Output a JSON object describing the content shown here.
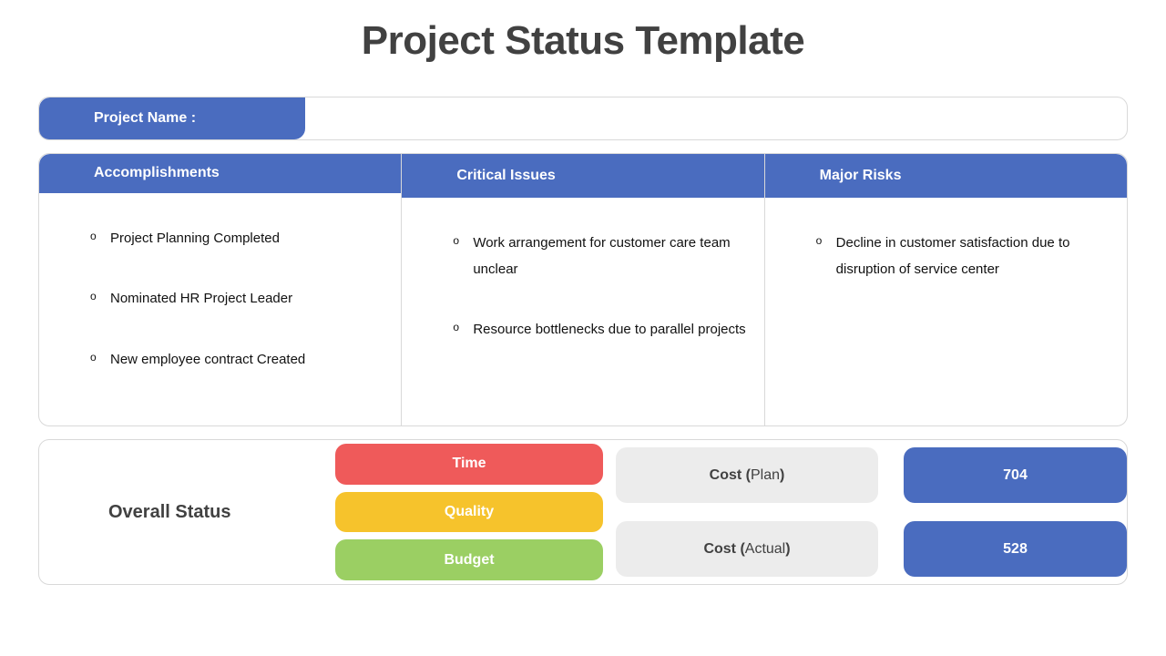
{
  "title": "Project Status Template",
  "project_name_label": "Project Name :",
  "project_name_value": "",
  "columns": {
    "accomplishments": {
      "header": "Accomplishments",
      "items": [
        "Project Planning Completed",
        "Nominated HR Project Leader",
        "New employee contract Created"
      ]
    },
    "critical_issues": {
      "header": "Critical Issues",
      "items": [
        "Work arrangement for customer care team unclear",
        "Resource bottlenecks due to parallel projects"
      ]
    },
    "major_risks": {
      "header": "Major Risks",
      "items": [
        "Decline in customer satisfaction due to disruption of service center"
      ]
    }
  },
  "footer": {
    "overall_status_label": "Overall Status",
    "pills": [
      {
        "label": "Time",
        "color": "#ef5a5a"
      },
      {
        "label": "Quality",
        "color": "#f6c32c"
      },
      {
        "label": "Budget",
        "color": "#9bcf63"
      }
    ],
    "cost_plan": {
      "prefix": "Cost (",
      "mid": "Plan",
      "suffix": ")",
      "value": "704"
    },
    "cost_actual": {
      "prefix": "Cost (",
      "mid": "Actual",
      "suffix": ")",
      "value": "528"
    }
  },
  "colors": {
    "brand_blue": "#4a6cbf",
    "border_grey": "#d9d9d9",
    "pill_grey": "#ececec",
    "title_color": "#414141",
    "text_color": "#111111",
    "white": "#ffffff"
  }
}
